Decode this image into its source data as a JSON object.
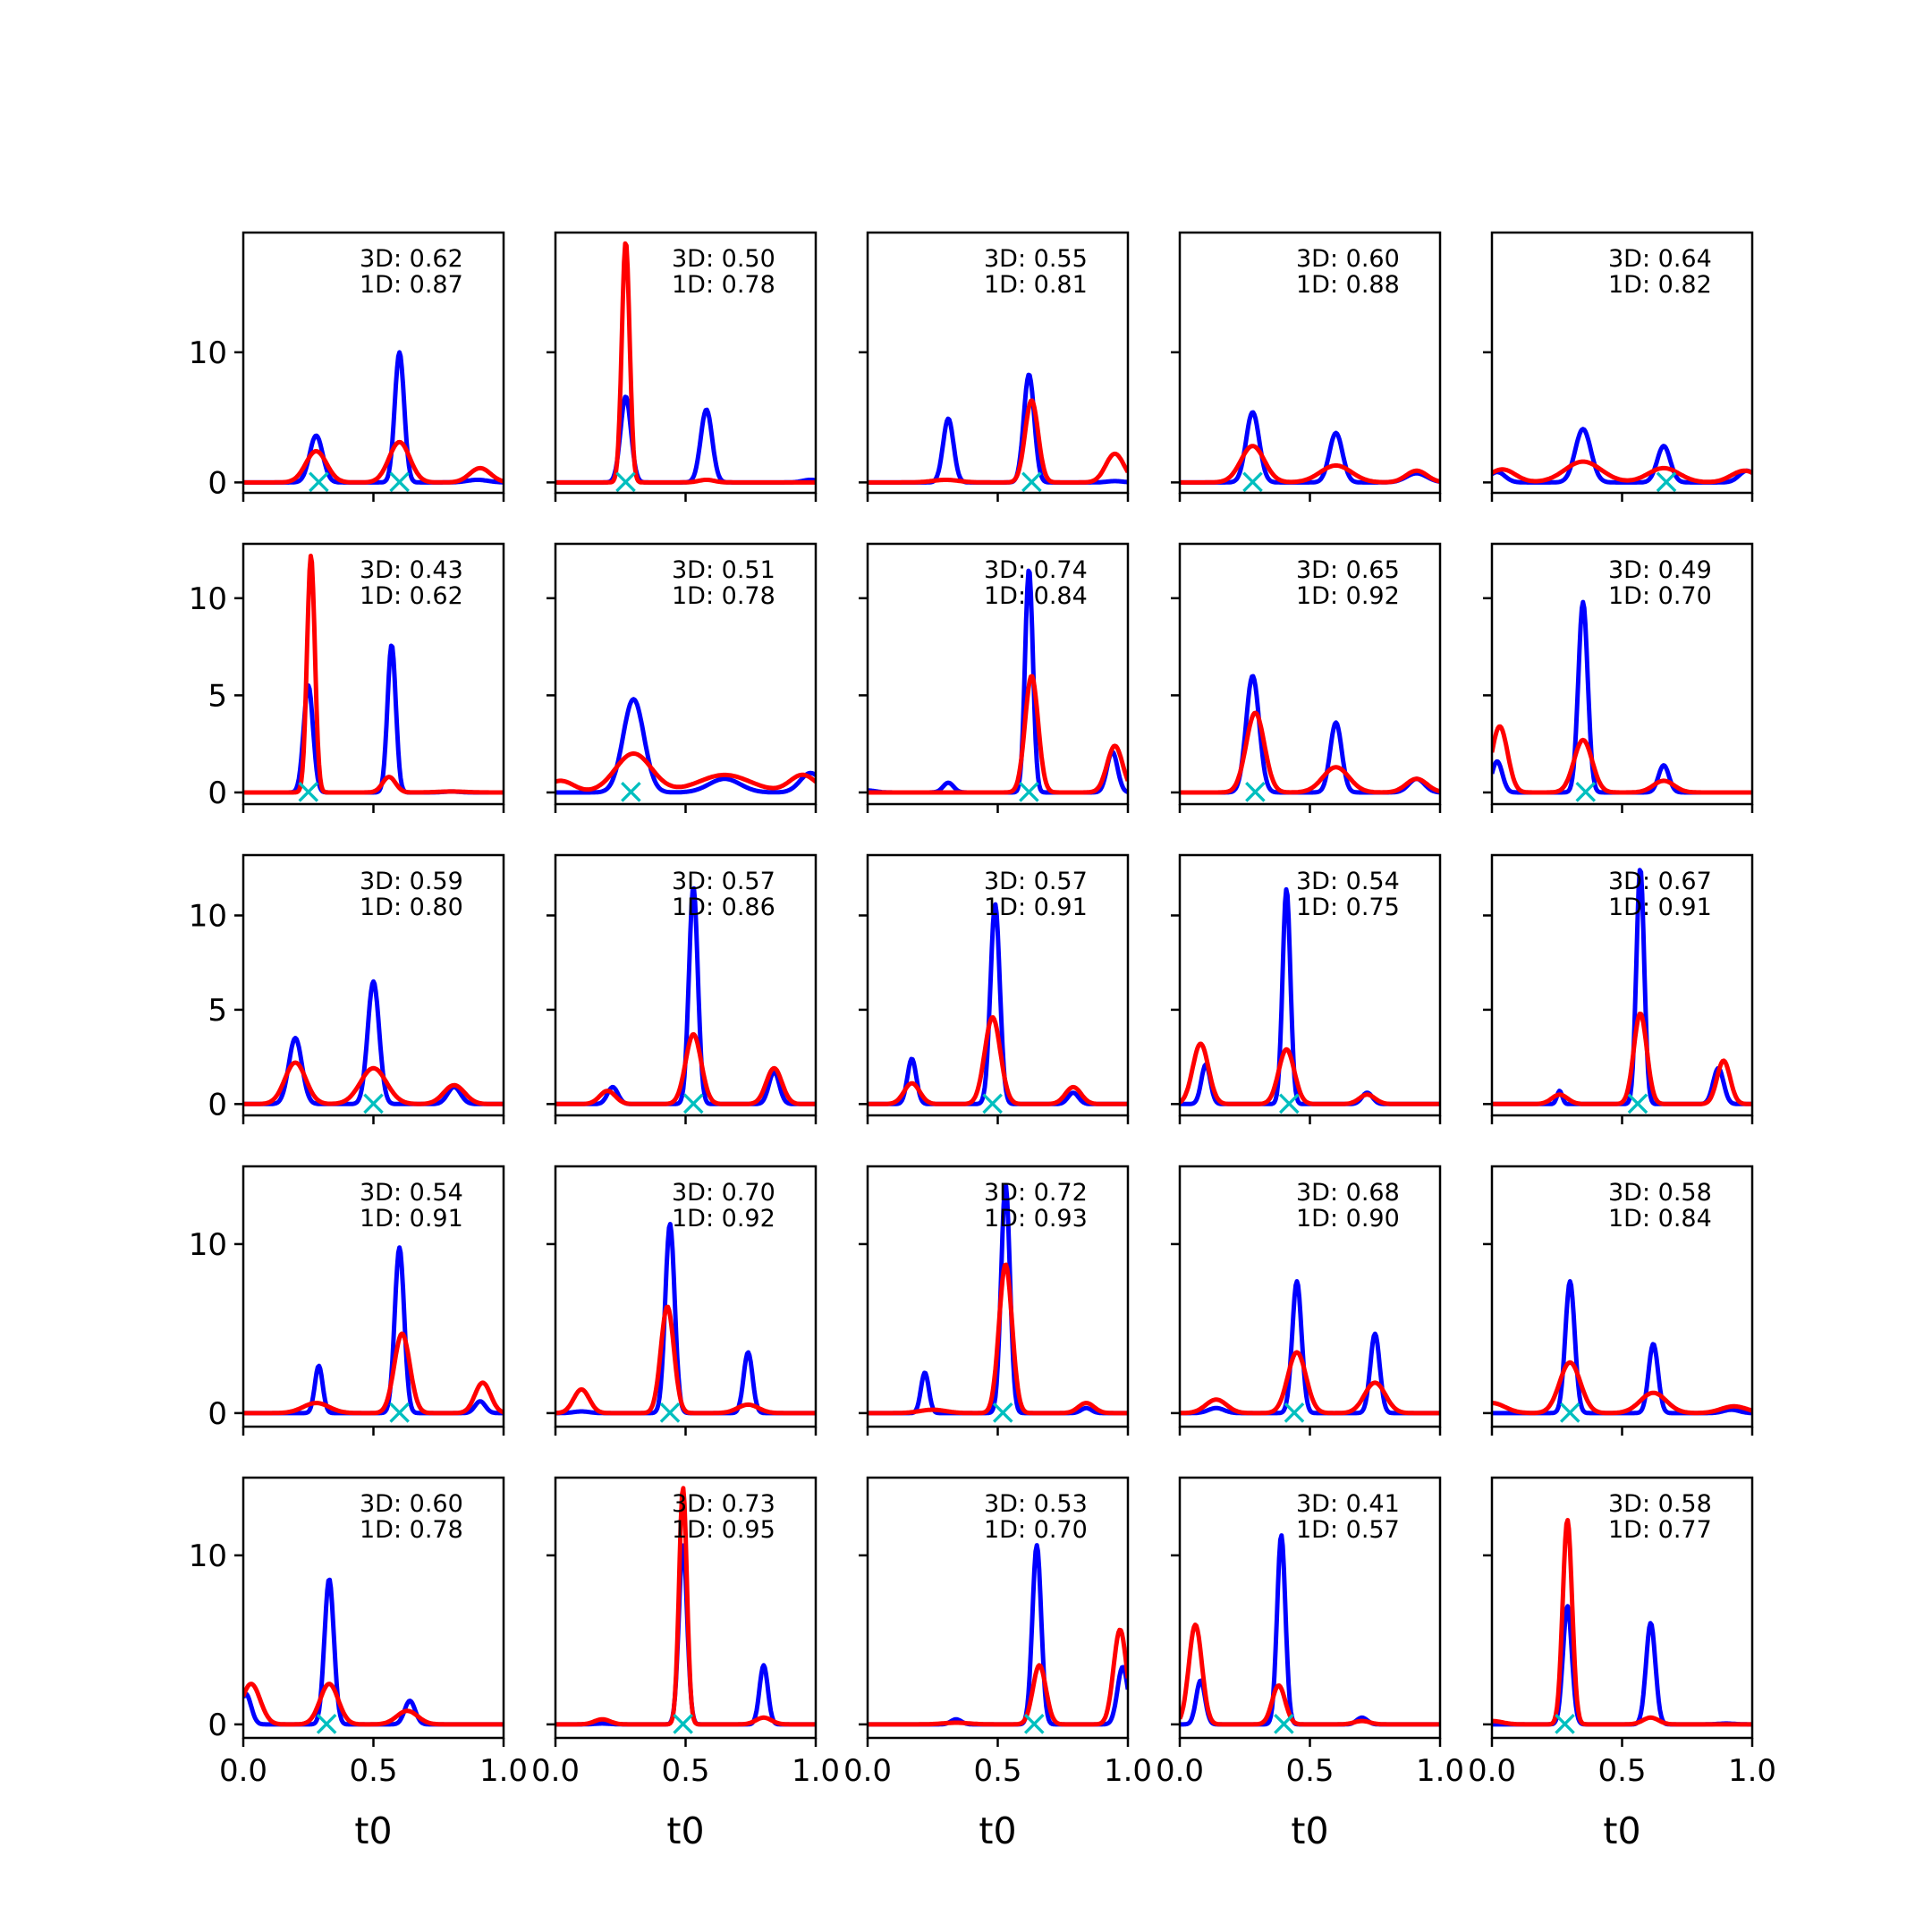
{
  "chart_data": {
    "type": "line",
    "layout": "5x5 grid of small-multiple line charts",
    "xlabel": "t0",
    "xlim": [
      0,
      1
    ],
    "xticks": [
      "0.0",
      "0.5",
      "1.0"
    ],
    "colors": {
      "series_a": "#0000ff",
      "series_b": "#ff0000",
      "marker": "#00bfbf"
    },
    "marker_symbol": "×",
    "rows": [
      {
        "ylim": [
          -0.8,
          19.2
        ],
        "yticks": [
          "0",
          "10"
        ]
      },
      {
        "ylim": [
          -0.6,
          12.8
        ],
        "yticks": [
          "0",
          "5",
          "10"
        ]
      },
      {
        "ylim": [
          -0.6,
          13.2
        ],
        "yticks": [
          "0",
          "5",
          "10"
        ]
      },
      {
        "ylim": [
          -0.8,
          14.6
        ],
        "yticks": [
          "0",
          "10"
        ]
      },
      {
        "ylim": [
          -0.8,
          14.6
        ],
        "yticks": [
          "0",
          "10"
        ]
      }
    ],
    "panels": [
      {
        "label_3d": "3D: 0.62",
        "label_1d": "1D: 0.87",
        "marker_x": [
          0.29,
          0.6
        ],
        "blue": [
          [
            0.28,
            3.6,
            0.025
          ],
          [
            0.6,
            10.0,
            0.018
          ],
          [
            0.9,
            0.2,
            0.04
          ]
        ],
        "red": [
          [
            0.28,
            2.4,
            0.04
          ],
          [
            0.6,
            3.1,
            0.04
          ],
          [
            0.91,
            1.1,
            0.04
          ]
        ]
      },
      {
        "label_3d": "3D: 0.50",
        "label_1d": "1D: 0.78",
        "marker_x": [
          0.27
        ],
        "blue": [
          [
            0.27,
            6.6,
            0.02
          ],
          [
            0.58,
            5.6,
            0.022
          ],
          [
            0.98,
            0.2,
            0.03
          ]
        ],
        "red": [
          [
            0.27,
            18.5,
            0.015
          ],
          [
            0.58,
            0.2,
            0.03
          ]
        ]
      },
      {
        "label_3d": "3D: 0.55",
        "label_1d": "1D: 0.81",
        "marker_x": [
          0.63
        ],
        "blue": [
          [
            0.31,
            4.9,
            0.02
          ],
          [
            0.62,
            8.3,
            0.02
          ],
          [
            0.95,
            0.1,
            0.03
          ]
        ],
        "red": [
          [
            0.3,
            0.2,
            0.05
          ],
          [
            0.63,
            6.3,
            0.025
          ],
          [
            0.95,
            2.2,
            0.035
          ]
        ]
      },
      {
        "label_3d": "3D: 0.60",
        "label_1d": "1D: 0.88",
        "marker_x": [
          0.28
        ],
        "blue": [
          [
            0.28,
            5.4,
            0.025
          ],
          [
            0.6,
            3.8,
            0.025
          ],
          [
            0.91,
            0.7,
            0.04
          ]
        ],
        "red": [
          [
            0.28,
            2.8,
            0.045
          ],
          [
            0.6,
            1.3,
            0.06
          ],
          [
            0.91,
            0.9,
            0.04
          ]
        ]
      },
      {
        "label_3d": "3D: 0.64",
        "label_1d": "1D: 0.82",
        "marker_x": [
          0.67
        ],
        "blue": [
          [
            0.02,
            0.8,
            0.03
          ],
          [
            0.35,
            4.1,
            0.03
          ],
          [
            0.66,
            2.8,
            0.025
          ],
          [
            0.98,
            0.9,
            0.03
          ]
        ],
        "red": [
          [
            0.04,
            1.0,
            0.05
          ],
          [
            0.35,
            1.6,
            0.07
          ],
          [
            0.66,
            1.1,
            0.06
          ],
          [
            0.97,
            0.9,
            0.05
          ]
        ]
      },
      {
        "label_3d": "3D: 0.43",
        "label_1d": "1D: 0.62",
        "marker_x": [
          0.25
        ],
        "blue": [
          [
            0.25,
            5.5,
            0.018
          ],
          [
            0.57,
            7.6,
            0.016
          ],
          [
            0.8,
            0.05,
            0.03
          ]
        ],
        "red": [
          [
            0.26,
            12.2,
            0.015
          ],
          [
            0.56,
            0.8,
            0.025
          ],
          [
            0.8,
            0.05,
            0.05
          ]
        ]
      },
      {
        "label_3d": "3D: 0.51",
        "label_1d": "1D: 0.78",
        "marker_x": [
          0.29
        ],
        "blue": [
          [
            0.3,
            4.8,
            0.04
          ],
          [
            0.65,
            0.7,
            0.06
          ],
          [
            0.98,
            1.0,
            0.04
          ]
        ],
        "red": [
          [
            0.02,
            0.6,
            0.05
          ],
          [
            0.3,
            2.0,
            0.07
          ],
          [
            0.65,
            0.9,
            0.1
          ],
          [
            0.95,
            0.9,
            0.05
          ]
        ]
      },
      {
        "label_3d": "3D: 0.74",
        "label_1d": "1D: 0.84",
        "marker_x": [
          0.62
        ],
        "blue": [
          [
            0.0,
            0.1,
            0.03
          ],
          [
            0.31,
            0.5,
            0.02
          ],
          [
            0.62,
            11.5,
            0.015
          ],
          [
            0.94,
            2.1,
            0.02
          ]
        ],
        "red": [
          [
            0.63,
            6.0,
            0.025
          ],
          [
            0.95,
            2.4,
            0.03
          ]
        ]
      },
      {
        "label_3d": "3D: 0.65",
        "label_1d": "1D: 0.92",
        "marker_x": [
          0.29
        ],
        "blue": [
          [
            0.28,
            6.0,
            0.025
          ],
          [
            0.6,
            3.6,
            0.022
          ],
          [
            0.91,
            0.7,
            0.03
          ]
        ],
        "red": [
          [
            0.29,
            4.1,
            0.035
          ],
          [
            0.6,
            1.3,
            0.05
          ],
          [
            0.91,
            0.7,
            0.04
          ]
        ]
      },
      {
        "label_3d": "3D: 0.49",
        "label_1d": "1D: 0.70",
        "marker_x": [
          0.36
        ],
        "blue": [
          [
            0.02,
            1.6,
            0.02
          ],
          [
            0.35,
            9.8,
            0.018
          ],
          [
            0.66,
            1.4,
            0.02
          ]
        ],
        "red": [
          [
            0.03,
            3.4,
            0.03
          ],
          [
            0.35,
            2.7,
            0.035
          ],
          [
            0.66,
            0.6,
            0.04
          ]
        ]
      },
      {
        "label_3d": "3D: 0.59",
        "label_1d": "1D: 0.80",
        "marker_x": [
          0.5
        ],
        "blue": [
          [
            0.2,
            3.5,
            0.025
          ],
          [
            0.5,
            6.5,
            0.022
          ],
          [
            0.81,
            0.9,
            0.025
          ]
        ],
        "red": [
          [
            0.2,
            2.2,
            0.04
          ],
          [
            0.5,
            1.9,
            0.05
          ],
          [
            0.81,
            1.0,
            0.04
          ]
        ]
      },
      {
        "label_3d": "3D: 0.57",
        "label_1d": "1D: 0.86",
        "marker_x": [
          0.53
        ],
        "blue": [
          [
            0.22,
            0.9,
            0.02
          ],
          [
            0.53,
            11.5,
            0.017
          ],
          [
            0.84,
            1.7,
            0.02
          ]
        ],
        "red": [
          [
            0.2,
            0.7,
            0.03
          ],
          [
            0.53,
            3.7,
            0.03
          ],
          [
            0.84,
            1.9,
            0.03
          ]
        ]
      },
      {
        "label_3d": "3D: 0.57",
        "label_1d": "1D: 0.91",
        "marker_x": [
          0.48
        ],
        "blue": [
          [
            0.17,
            2.4,
            0.017
          ],
          [
            0.49,
            10.6,
            0.018
          ],
          [
            0.79,
            0.6,
            0.02
          ]
        ],
        "red": [
          [
            0.17,
            1.1,
            0.03
          ],
          [
            0.48,
            4.6,
            0.03
          ],
          [
            0.79,
            0.9,
            0.03
          ]
        ]
      },
      {
        "label_3d": "3D: 0.54",
        "label_1d": "1D: 0.75",
        "marker_x": [
          0.42
        ],
        "blue": [
          [
            0.1,
            2.1,
            0.017
          ],
          [
            0.41,
            11.4,
            0.015
          ],
          [
            0.72,
            0.6,
            0.02
          ]
        ],
        "red": [
          [
            0.08,
            3.2,
            0.03
          ],
          [
            0.41,
            2.9,
            0.03
          ],
          [
            0.72,
            0.5,
            0.03
          ]
        ]
      },
      {
        "label_3d": "3D: 0.67",
        "label_1d": "1D: 0.91",
        "marker_x": [
          0.56
        ],
        "blue": [
          [
            0.26,
            0.7,
            0.01
          ],
          [
            0.57,
            12.5,
            0.015
          ],
          [
            0.87,
            1.9,
            0.02
          ]
        ],
        "red": [
          [
            0.26,
            0.5,
            0.03
          ],
          [
            0.57,
            4.8,
            0.025
          ],
          [
            0.89,
            2.3,
            0.025
          ]
        ]
      },
      {
        "label_3d": "3D: 0.54",
        "label_1d": "1D: 0.91",
        "marker_x": [
          0.6
        ],
        "blue": [
          [
            0.29,
            2.8,
            0.015
          ],
          [
            0.6,
            9.8,
            0.018
          ],
          [
            0.91,
            0.7,
            0.02
          ]
        ],
        "red": [
          [
            0.28,
            0.6,
            0.05
          ],
          [
            0.61,
            4.7,
            0.03
          ],
          [
            0.92,
            1.8,
            0.03
          ]
        ]
      },
      {
        "label_3d": "3D: 0.70",
        "label_1d": "1D: 0.92",
        "marker_x": [
          0.44
        ],
        "blue": [
          [
            0.44,
            11.2,
            0.018
          ],
          [
            0.74,
            3.6,
            0.017
          ],
          [
            0.1,
            0.1,
            0.03
          ]
        ],
        "red": [
          [
            0.1,
            1.4,
            0.03
          ],
          [
            0.43,
            6.3,
            0.025
          ],
          [
            0.74,
            0.5,
            0.04
          ]
        ]
      },
      {
        "label_3d": "3D: 0.72",
        "label_1d": "1D: 0.93",
        "marker_x": [
          0.52
        ],
        "blue": [
          [
            0.22,
            2.4,
            0.015
          ],
          [
            0.53,
            13.5,
            0.017
          ],
          [
            0.84,
            0.3,
            0.02
          ]
        ],
        "red": [
          [
            0.53,
            8.8,
            0.025
          ],
          [
            0.84,
            0.6,
            0.03
          ],
          [
            0.25,
            0.2,
            0.05
          ]
        ]
      },
      {
        "label_3d": "3D: 0.68",
        "label_1d": "1D: 0.90",
        "marker_x": [
          0.44
        ],
        "blue": [
          [
            0.14,
            0.3,
            0.03
          ],
          [
            0.45,
            7.8,
            0.018
          ],
          [
            0.75,
            4.7,
            0.018
          ]
        ],
        "red": [
          [
            0.14,
            0.8,
            0.04
          ],
          [
            0.45,
            3.6,
            0.035
          ],
          [
            0.75,
            1.8,
            0.04
          ]
        ]
      },
      {
        "label_3d": "3D: 0.58",
        "label_1d": "1D: 0.84",
        "marker_x": [
          0.3
        ],
        "blue": [
          [
            0.3,
            7.8,
            0.018
          ],
          [
            0.62,
            4.1,
            0.018
          ],
          [
            0.92,
            0.2,
            0.03
          ]
        ],
        "red": [
          [
            0.0,
            0.6,
            0.05
          ],
          [
            0.3,
            3.0,
            0.04
          ],
          [
            0.62,
            1.2,
            0.05
          ],
          [
            0.93,
            0.4,
            0.05
          ]
        ]
      },
      {
        "label_3d": "3D: 0.60",
        "label_1d": "1D: 0.78",
        "marker_x": [
          0.32
        ],
        "blue": [
          [
            0.01,
            1.8,
            0.02
          ],
          [
            0.33,
            8.6,
            0.018
          ],
          [
            0.64,
            1.4,
            0.02
          ]
        ],
        "red": [
          [
            0.03,
            2.4,
            0.035
          ],
          [
            0.33,
            2.4,
            0.035
          ],
          [
            0.63,
            0.8,
            0.04
          ]
        ]
      },
      {
        "label_3d": "3D: 0.73",
        "label_1d": "1D: 0.95",
        "marker_x": [
          0.49
        ],
        "blue": [
          [
            0.49,
            10.6,
            0.016
          ],
          [
            0.8,
            3.5,
            0.016
          ],
          [
            0.18,
            0.05,
            0.03
          ]
        ],
        "red": [
          [
            0.18,
            0.3,
            0.03
          ],
          [
            0.49,
            14.0,
            0.015
          ],
          [
            0.8,
            0.4,
            0.03
          ]
        ]
      },
      {
        "label_3d": "3D: 0.53",
        "label_1d": "1D: 0.70",
        "marker_x": [
          0.64
        ],
        "blue": [
          [
            0.34,
            0.3,
            0.02
          ],
          [
            0.65,
            10.6,
            0.017
          ],
          [
            0.98,
            3.4,
            0.02
          ]
        ],
        "red": [
          [
            0.66,
            3.5,
            0.025
          ],
          [
            0.97,
            5.6,
            0.025
          ],
          [
            0.34,
            0.1,
            0.05
          ]
        ]
      },
      {
        "label_3d": "3D: 0.41",
        "label_1d": "1D: 0.57",
        "marker_x": [
          0.4
        ],
        "blue": [
          [
            0.08,
            2.6,
            0.017
          ],
          [
            0.39,
            11.2,
            0.016
          ],
          [
            0.7,
            0.4,
            0.02
          ]
        ],
        "red": [
          [
            0.06,
            5.9,
            0.025
          ],
          [
            0.38,
            2.3,
            0.025
          ],
          [
            0.7,
            0.2,
            0.03
          ]
        ]
      },
      {
        "label_3d": "3D: 0.58",
        "label_1d": "1D: 0.77",
        "marker_x": [
          0.28
        ],
        "blue": [
          [
            0.29,
            7.0,
            0.017
          ],
          [
            0.61,
            6.0,
            0.018
          ],
          [
            0.9,
            0.05,
            0.03
          ]
        ],
        "red": [
          [
            0.0,
            0.2,
            0.04
          ],
          [
            0.29,
            12.1,
            0.018
          ],
          [
            0.61,
            0.4,
            0.03
          ]
        ]
      }
    ]
  }
}
